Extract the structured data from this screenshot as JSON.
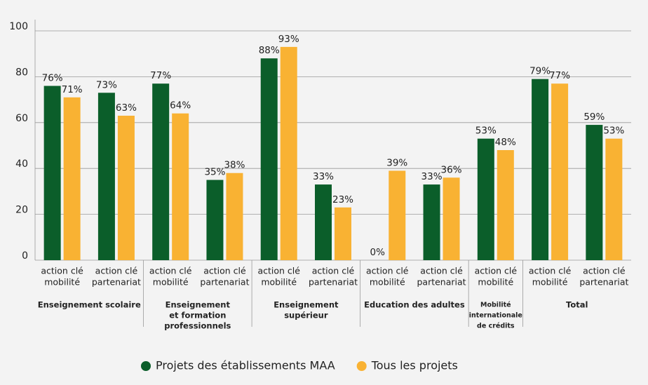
{
  "chart_data": {
    "type": "bar",
    "categories": [
      [
        "action clé",
        "mobilité"
      ],
      [
        "action clé",
        "partenariat"
      ],
      [
        "action clé",
        "mobilité"
      ],
      [
        "action clé",
        "partenariat"
      ],
      [
        "action clé",
        "mobilité"
      ],
      [
        "action clé",
        "partenariat"
      ],
      [
        "action clé",
        "mobilité"
      ],
      [
        "action clé",
        "partenariat"
      ],
      [
        "action clé",
        "mobilité"
      ],
      [
        "action clé",
        "mobilité"
      ],
      [
        "action clé",
        "partenariat"
      ]
    ],
    "groups": [
      {
        "name": [
          "Enseignement scolaire"
        ],
        "span": 2
      },
      {
        "name": [
          "Enseignement",
          "et formation",
          "professionnels"
        ],
        "span": 2
      },
      {
        "name": [
          "Enseignement",
          "supérieur"
        ],
        "span": 2
      },
      {
        "name": [
          "Education des adultes"
        ],
        "span": 2
      },
      {
        "name": [
          "Mobilité",
          "internationale",
          "de crédits"
        ],
        "span": 1
      },
      {
        "name": [
          "Total"
        ],
        "span": 2
      }
    ],
    "series": [
      {
        "name": "Projets des établissements MAA",
        "color": "#0b5e2a",
        "values": [
          76,
          73,
          77,
          35,
          88,
          33,
          0,
          33,
          53,
          79,
          59
        ],
        "value_labels": [
          "76%",
          "73%",
          "77%",
          "35%",
          "88%",
          "33%",
          "0%",
          "33%",
          "53%",
          "79%",
          "59%"
        ]
      },
      {
        "name": "Tous les projets",
        "color": "#f9b233",
        "values": [
          71,
          63,
          64,
          38,
          93,
          23,
          39,
          36,
          48,
          77,
          53
        ],
        "value_labels": [
          "71%",
          "63%",
          "64%",
          "38%",
          "93%",
          "23%",
          "39%",
          "36%",
          "48%",
          "77%",
          "53%"
        ]
      }
    ],
    "ylim": [
      0,
      100
    ],
    "yticks": [
      0,
      20,
      40,
      60,
      80,
      100
    ],
    "grid": true,
    "legend": "bottom"
  }
}
